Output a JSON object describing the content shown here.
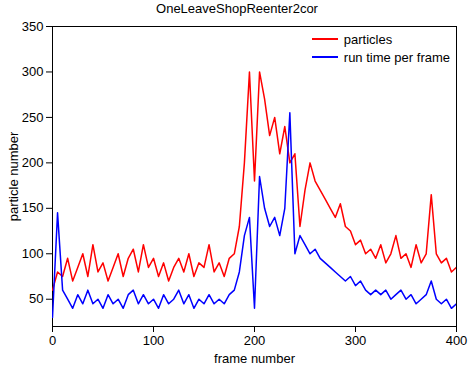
{
  "chart_data": {
    "type": "line",
    "title": "OneLeaveShopReenter2cor",
    "x_label": "frame number",
    "y_label": "particle number",
    "x": [
      0,
      5,
      10,
      15,
      20,
      25,
      30,
      35,
      40,
      45,
      50,
      55,
      60,
      65,
      70,
      75,
      80,
      85,
      90,
      95,
      100,
      105,
      110,
      115,
      120,
      125,
      130,
      135,
      140,
      145,
      150,
      155,
      160,
      165,
      170,
      175,
      180,
      185,
      190,
      195,
      200,
      205,
      210,
      215,
      220,
      225,
      230,
      235,
      240,
      245,
      250,
      255,
      260,
      265,
      270,
      275,
      280,
      285,
      290,
      295,
      300,
      305,
      310,
      315,
      320,
      325,
      330,
      335,
      340,
      345,
      350,
      355,
      360,
      365,
      370,
      375,
      380,
      385,
      390,
      395,
      400
    ],
    "series": [
      {
        "name": "particles",
        "color": "#ff0000",
        "values": [
          60,
          80,
          75,
          95,
          70,
          85,
          100,
          75,
          110,
          80,
          90,
          70,
          85,
          100,
          75,
          95,
          105,
          80,
          110,
          85,
          95,
          75,
          90,
          70,
          85,
          95,
          80,
          100,
          75,
          90,
          85,
          110,
          80,
          90,
          75,
          95,
          100,
          130,
          200,
          300,
          180,
          300,
          270,
          230,
          250,
          210,
          240,
          200,
          210,
          130,
          170,
          200,
          180,
          170,
          160,
          150,
          140,
          155,
          130,
          125,
          110,
          115,
          100,
          105,
          95,
          110,
          90,
          100,
          120,
          95,
          100,
          85,
          110,
          90,
          100,
          165,
          100,
          90,
          95,
          80,
          85
        ]
      },
      {
        "name": "run time per frame",
        "color": "#0000ff",
        "values": [
          30,
          145,
          60,
          50,
          40,
          55,
          45,
          60,
          45,
          50,
          40,
          55,
          45,
          50,
          40,
          55,
          60,
          45,
          55,
          45,
          50,
          40,
          55,
          45,
          50,
          60,
          45,
          55,
          40,
          50,
          45,
          55,
          45,
          50,
          45,
          55,
          60,
          80,
          120,
          140,
          40,
          185,
          150,
          130,
          140,
          120,
          150,
          255,
          100,
          120,
          110,
          100,
          105,
          95,
          90,
          85,
          80,
          75,
          70,
          75,
          65,
          70,
          60,
          55,
          60,
          55,
          60,
          50,
          55,
          60,
          50,
          55,
          45,
          50,
          55,
          70,
          50,
          45,
          50,
          40,
          45
        ]
      }
    ],
    "xlim": [
      0,
      400
    ],
    "xticks": [
      0,
      100,
      200,
      300,
      400
    ],
    "ylim": [
      20,
      350
    ],
    "yticks": [
      50,
      100,
      150,
      200,
      250,
      300,
      350
    ],
    "legend": "top-right",
    "grid": false
  }
}
